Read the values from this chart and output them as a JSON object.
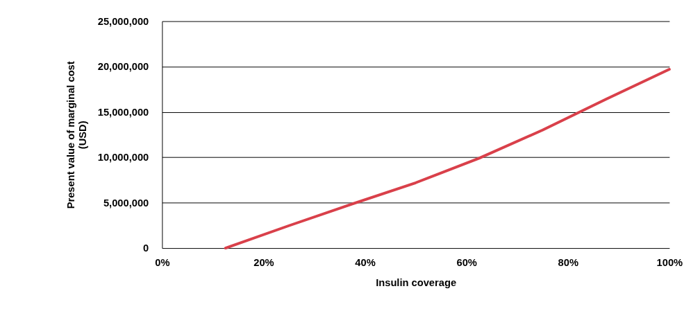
{
  "chart_data": {
    "type": "line",
    "xlabel": "Insulin coverage",
    "ylabel": "Present value of marginal cost\n(USD)",
    "x": [
      12.5,
      25,
      37.5,
      50,
      62.5,
      75,
      87.5,
      100
    ],
    "series": [
      {
        "color": "#d9404a",
        "values": [
          0,
          2470000,
          4870000,
          7200000,
          9900000,
          13000000,
          16400000,
          19700000
        ]
      }
    ],
    "xlim": [
      0,
      100
    ],
    "xticks": [
      {
        "value": 0,
        "label": "0%"
      },
      {
        "value": 20,
        "label": "20%"
      },
      {
        "value": 40,
        "label": "40%"
      },
      {
        "value": 60,
        "label": "60%"
      },
      {
        "value": 80,
        "label": "80%"
      },
      {
        "value": 100,
        "label": "100%"
      }
    ],
    "ylim": [
      0,
      25000000
    ],
    "yticks": [
      {
        "value": 0,
        "label": "0"
      },
      {
        "value": 5000000,
        "label": "5,000,000"
      },
      {
        "value": 10000000,
        "label": "10,000,000"
      },
      {
        "value": 15000000,
        "label": "15,000,000"
      },
      {
        "value": 20000000,
        "label": "20,000,000"
      },
      {
        "value": 25000000,
        "label": "25,000,000"
      }
    ],
    "grid": "y",
    "marker": "none",
    "line_style": "solid"
  }
}
